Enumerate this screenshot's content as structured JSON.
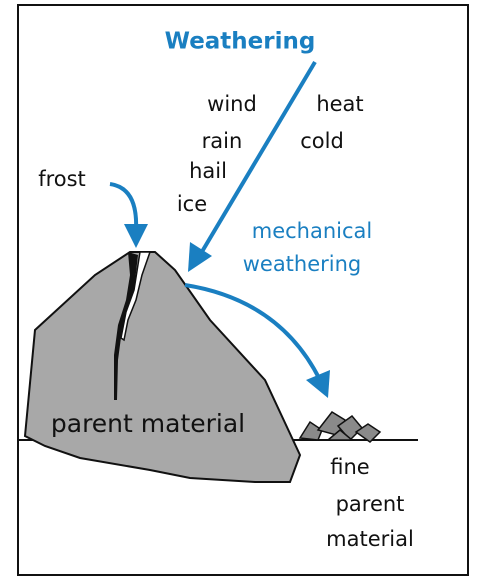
{
  "title": "Weathering",
  "agents": [
    "wind",
    "heat",
    "rain",
    "cold",
    "hail",
    "ice"
  ],
  "frost": "frost",
  "process": [
    "mechanical",
    "weathering"
  ],
  "rock": "parent material",
  "product": [
    "fine",
    "parent",
    "material"
  ]
}
